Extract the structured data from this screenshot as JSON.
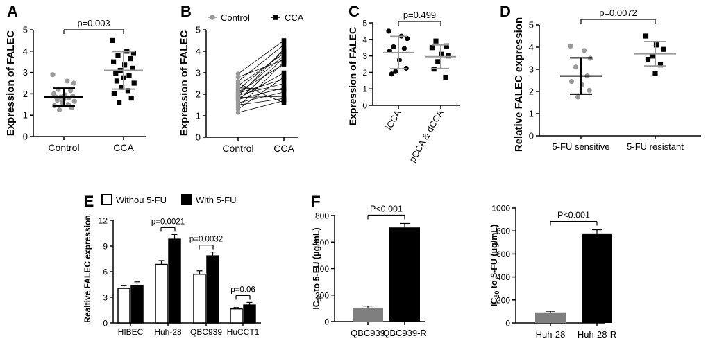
{
  "colors": {
    "black": "#000000",
    "gray": "#999999",
    "dark_gray": "#7f7f7f",
    "white": "#ffffff"
  },
  "chart_data": [
    {
      "id": "A",
      "panel_label": "A",
      "type": "scatter",
      "title": "",
      "xlabel": "",
      "ylabel": "Expression of FALEC",
      "ylim": [
        0,
        5
      ],
      "yticks": [
        "0",
        "1",
        "2",
        "3",
        "4",
        "5"
      ],
      "categories": [
        "Control",
        "CCA"
      ],
      "series": [
        {
          "name": "Control",
          "color": "#999999",
          "marker": "circle",
          "values": [
            2.9,
            2.6,
            2.5,
            2.2,
            2.15,
            2.0,
            1.95,
            1.9,
            1.85,
            1.85,
            1.8,
            1.75,
            1.7,
            1.65,
            1.6,
            1.5,
            1.45,
            1.35,
            1.25
          ],
          "mean": 1.85,
          "sd": 0.42
        },
        {
          "name": "CCA",
          "color": "#000000",
          "marker": "square",
          "values": [
            4.5,
            4.0,
            3.9,
            3.8,
            3.65,
            3.5,
            3.35,
            3.2,
            3.1,
            2.95,
            2.85,
            2.75,
            2.6,
            2.5,
            2.3,
            2.15,
            2.0,
            1.8,
            1.6
          ],
          "mean": 3.1,
          "sd": 0.88
        }
      ],
      "annotations": [
        {
          "text": "p=0.003",
          "between": [
            "Control",
            "CCA"
          ]
        }
      ]
    },
    {
      "id": "B",
      "panel_label": "B",
      "type": "line",
      "title": "",
      "xlabel": "",
      "ylabel": "Expression of FALEC",
      "ylim": [
        0,
        5
      ],
      "yticks": [
        "0",
        "1",
        "2",
        "3",
        "4",
        "5"
      ],
      "categories": [
        "Control",
        "CCA"
      ],
      "legend": [
        "Control",
        "CCA"
      ],
      "legend_position": "top",
      "pairs": [
        [
          2.95,
          4.5
        ],
        [
          2.8,
          3.6
        ],
        [
          2.6,
          4.3
        ],
        [
          2.5,
          1.6
        ],
        [
          2.4,
          3.9
        ],
        [
          2.3,
          2.2
        ],
        [
          2.2,
          4.0
        ],
        [
          2.1,
          3.4
        ],
        [
          2.05,
          2.7
        ],
        [
          2.0,
          3.8
        ],
        [
          1.95,
          2.5
        ],
        [
          1.9,
          4.1
        ],
        [
          1.85,
          1.9
        ],
        [
          1.8,
          3.0
        ],
        [
          1.75,
          2.3
        ],
        [
          1.7,
          3.7
        ],
        [
          1.6,
          2.1
        ],
        [
          1.5,
          1.8
        ],
        [
          1.4,
          3.5
        ],
        [
          1.3,
          2.8
        ],
        [
          1.15,
          1.7
        ]
      ]
    },
    {
      "id": "C",
      "panel_label": "C",
      "type": "scatter",
      "title": "",
      "xlabel": "",
      "ylabel": "Expression of FALEC",
      "ylim": [
        0,
        5
      ],
      "yticks": [
        "0",
        "1",
        "2",
        "3",
        "4",
        "5"
      ],
      "categories": [
        "iCCA",
        "pCCA & dCCA"
      ],
      "series": [
        {
          "name": "iCCA",
          "color": "#000000",
          "marker": "circle",
          "values": [
            4.5,
            4.2,
            4.05,
            3.55,
            3.45,
            3.3,
            2.75,
            2.25,
            2.05,
            1.9
          ],
          "mean": 3.2,
          "sd": 0.98
        },
        {
          "name": "pCCA & dCCA",
          "color": "#000000",
          "marker": "square",
          "values": [
            3.9,
            3.6,
            3.5,
            3.1,
            3.0,
            2.65,
            2.2,
            1.7
          ],
          "mean": 2.95,
          "sd": 0.72
        }
      ],
      "annotations": [
        {
          "text": "p=0.499",
          "between": [
            "iCCA",
            "pCCA & dCCA"
          ]
        }
      ]
    },
    {
      "id": "D",
      "panel_label": "D",
      "type": "scatter",
      "title": "",
      "xlabel": "",
      "ylabel": "Relative FALEC expression",
      "ylim": [
        0,
        5
      ],
      "yticks": [
        "0",
        "1",
        "2",
        "3",
        "4",
        "5"
      ],
      "categories": [
        "5-FU sensitive",
        "5-FU resistant"
      ],
      "series": [
        {
          "name": "5-FU sensitive",
          "color": "#999999",
          "marker": "circle",
          "values": [
            4.05,
            3.85,
            3.5,
            3.1,
            2.7,
            2.45,
            2.3,
            2.05,
            1.75
          ],
          "mean": 2.7,
          "sd": 0.82
        },
        {
          "name": "5-FU resistant",
          "color": "#000000",
          "marker": "square",
          "values": [
            4.5,
            4.1,
            3.9,
            3.6,
            3.45,
            3.2,
            2.8
          ],
          "mean": 3.7,
          "sd": 0.55
        }
      ],
      "annotations": [
        {
          "text": "p=0.0072",
          "between": [
            "5-FU sensitive",
            "5-FU resistant"
          ]
        }
      ]
    },
    {
      "id": "E",
      "panel_label": "E",
      "type": "bar",
      "title": "",
      "xlabel": "",
      "ylabel": "Realtive FALEC expression",
      "ylim": [
        0,
        12
      ],
      "yticks": [
        "0",
        "3",
        "6",
        "9",
        "12"
      ],
      "categories": [
        "HIBEC",
        "Huh-28",
        "QBC939",
        "HuCCT1"
      ],
      "legend_position": "top",
      "series": [
        {
          "name": "Withou 5-FU",
          "color": "#ffffff",
          "values": [
            4.05,
            6.85,
            5.7,
            1.65
          ],
          "errors": [
            0.35,
            0.45,
            0.4,
            0.15
          ]
        },
        {
          "name": "With 5-FU",
          "color": "#000000",
          "values": [
            4.4,
            9.8,
            7.85,
            2.1
          ],
          "errors": [
            0.4,
            0.55,
            0.45,
            0.3
          ]
        }
      ],
      "annotations": [
        {
          "text": "",
          "category": "HIBEC"
        },
        {
          "text": "p=0.0021",
          "category": "Huh-28"
        },
        {
          "text": "p=0.0032",
          "category": "QBC939"
        },
        {
          "text": "p=0.06",
          "category": "HuCCT1"
        }
      ]
    },
    {
      "id": "F1",
      "panel_label": "F",
      "type": "bar",
      "title": "",
      "xlabel": "",
      "ylabel": "IC50 to 5-FU (μg/mL)",
      "ylabel_parts": [
        "IC",
        "50",
        " to 5-FU (μg/mL)"
      ],
      "ylim": [
        0,
        800
      ],
      "yticks": [
        "0",
        "200",
        "400",
        "600",
        "800"
      ],
      "categories": [
        "QBC939",
        "QBC939-R"
      ],
      "series": [
        {
          "name": "IC50",
          "colors": [
            "#7f7f7f",
            "#000000"
          ],
          "values": [
            105,
            710
          ],
          "errors": [
            12,
            30
          ]
        }
      ],
      "annotations": [
        {
          "text": "P<0.001",
          "between": [
            "QBC939",
            "QBC939-R"
          ]
        }
      ]
    },
    {
      "id": "F2",
      "panel_label": "",
      "type": "bar",
      "title": "",
      "xlabel": "",
      "ylabel": "IC50 to 5-FU (μg/mL)",
      "ylabel_parts": [
        "IC",
        "50",
        " to 5-FU (μg/mL)"
      ],
      "ylim": [
        0,
        1000
      ],
      "yticks": [
        "0",
        "200",
        "400",
        "600",
        "800",
        "1000"
      ],
      "categories": [
        "Huh-28",
        "Huh-28-R"
      ],
      "series": [
        {
          "name": "IC50",
          "colors": [
            "#7f7f7f",
            "#000000"
          ],
          "values": [
            92,
            778
          ],
          "errors": [
            10,
            32
          ]
        }
      ],
      "annotations": [
        {
          "text": "P<0.001",
          "between": [
            "Huh-28",
            "Huh-28-R"
          ]
        }
      ]
    }
  ]
}
